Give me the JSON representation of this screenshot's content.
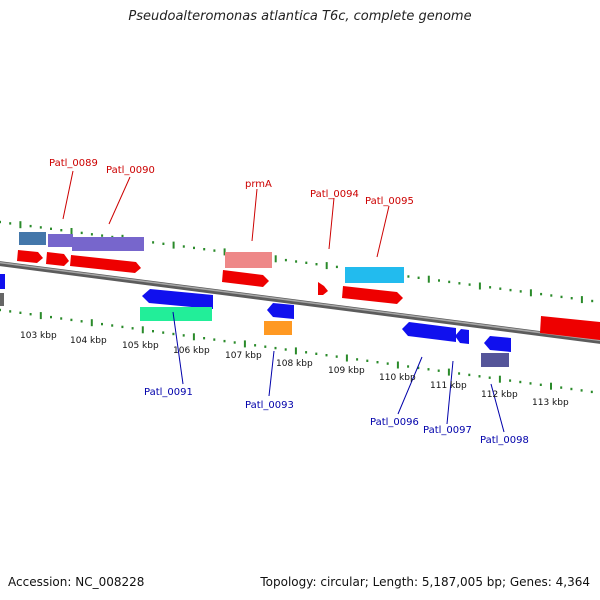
{
  "title": "Pseudoalteromonas atlantica T6c, complete genome",
  "accession": "Accession: NC_008228",
  "genome_info": "Topology: circular; Length: 5,187,005 bp; Genes: 4,364",
  "kbp_labels": [
    "103 kbp",
    "104 kbp",
    "105 kbp",
    "106 kbp",
    "107 kbp",
    "108 kbp",
    "109 kbp",
    "110 kbp",
    "111 kbp",
    "112 kbp",
    "113 kbp"
  ],
  "gene_labels_forward": [
    "Patl_0089",
    "Patl_0090",
    "prmA",
    "Patl_0094",
    "Patl_0095"
  ],
  "gene_labels_reverse": [
    "Patl_0091",
    "Patl_0093",
    "Patl_0096",
    "Patl_0097",
    "Patl_0098"
  ],
  "colors": {
    "forward_label": "#cc0000",
    "reverse_label": "#0000aa",
    "tick": "#2a8a2a",
    "backbone": "#808080",
    "red": "#ee0000",
    "blue": "#1010ee",
    "purple": "#7766cc",
    "steel": "#4477aa",
    "pink": "#ee8888",
    "cyan": "#22bbee",
    "green": "#22ee99",
    "orange": "#ff9922",
    "navy": "#555599"
  }
}
